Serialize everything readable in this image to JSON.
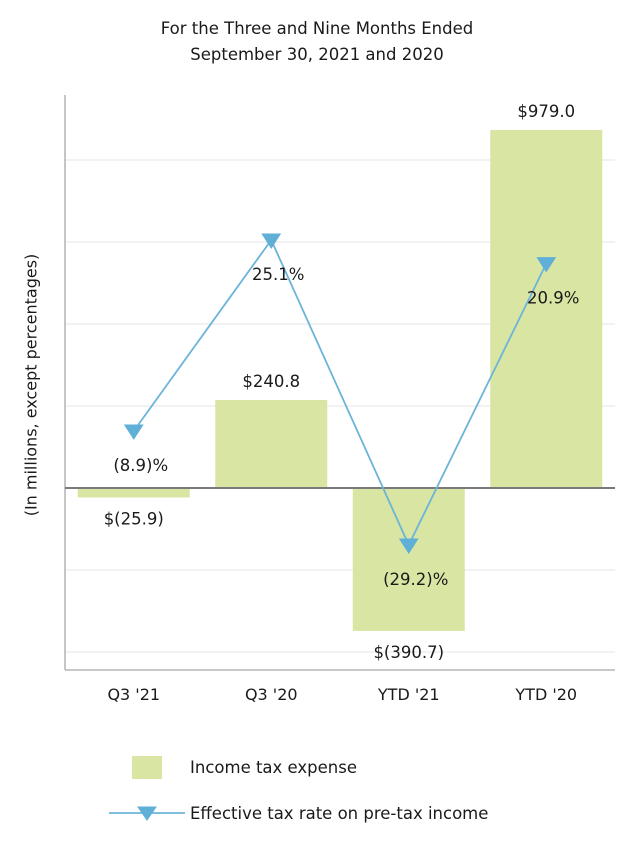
{
  "title": {
    "line1": "For the Three and Nine Months Ended",
    "line2": "September 30, 2021 and 2020"
  },
  "chart_data": {
    "type": "combo",
    "categories": [
      "Q3 '21",
      "Q3 '20",
      "YTD '21",
      "YTD '20"
    ],
    "series": [
      {
        "name": "Income tax expense",
        "type": "bar",
        "values": [
          -25.9,
          240.8,
          -390.7,
          979.0
        ],
        "labels": [
          "$(25.9)",
          "$240.8",
          "$(390.7)",
          "$979.0"
        ],
        "color": "#d9e5a2"
      },
      {
        "name": "Effective tax rate on pre-tax income",
        "type": "line",
        "values": [
          -8.9,
          25.1,
          -29.2,
          20.9
        ],
        "labels": [
          "(8.9)%",
          "25.1%",
          "(29.2)%",
          "20.9%"
        ],
        "color": "#6cb4da"
      }
    ],
    "ylabel": "(In millions, except percentages)",
    "grid": true,
    "legend_position": "bottom",
    "bar_axis_range": [
      -450,
      1000
    ],
    "pct_axis_range": [
      -35,
      30
    ]
  },
  "colors": {
    "bar_fill": "#d9e5a2",
    "line_stroke": "#6cb4da",
    "marker_fill": "#5fafd7",
    "gridline": "#e4e4e4",
    "zero_line": "#7a7a7a",
    "spine": "#a8a8a8",
    "text": "#1a1a1a"
  }
}
